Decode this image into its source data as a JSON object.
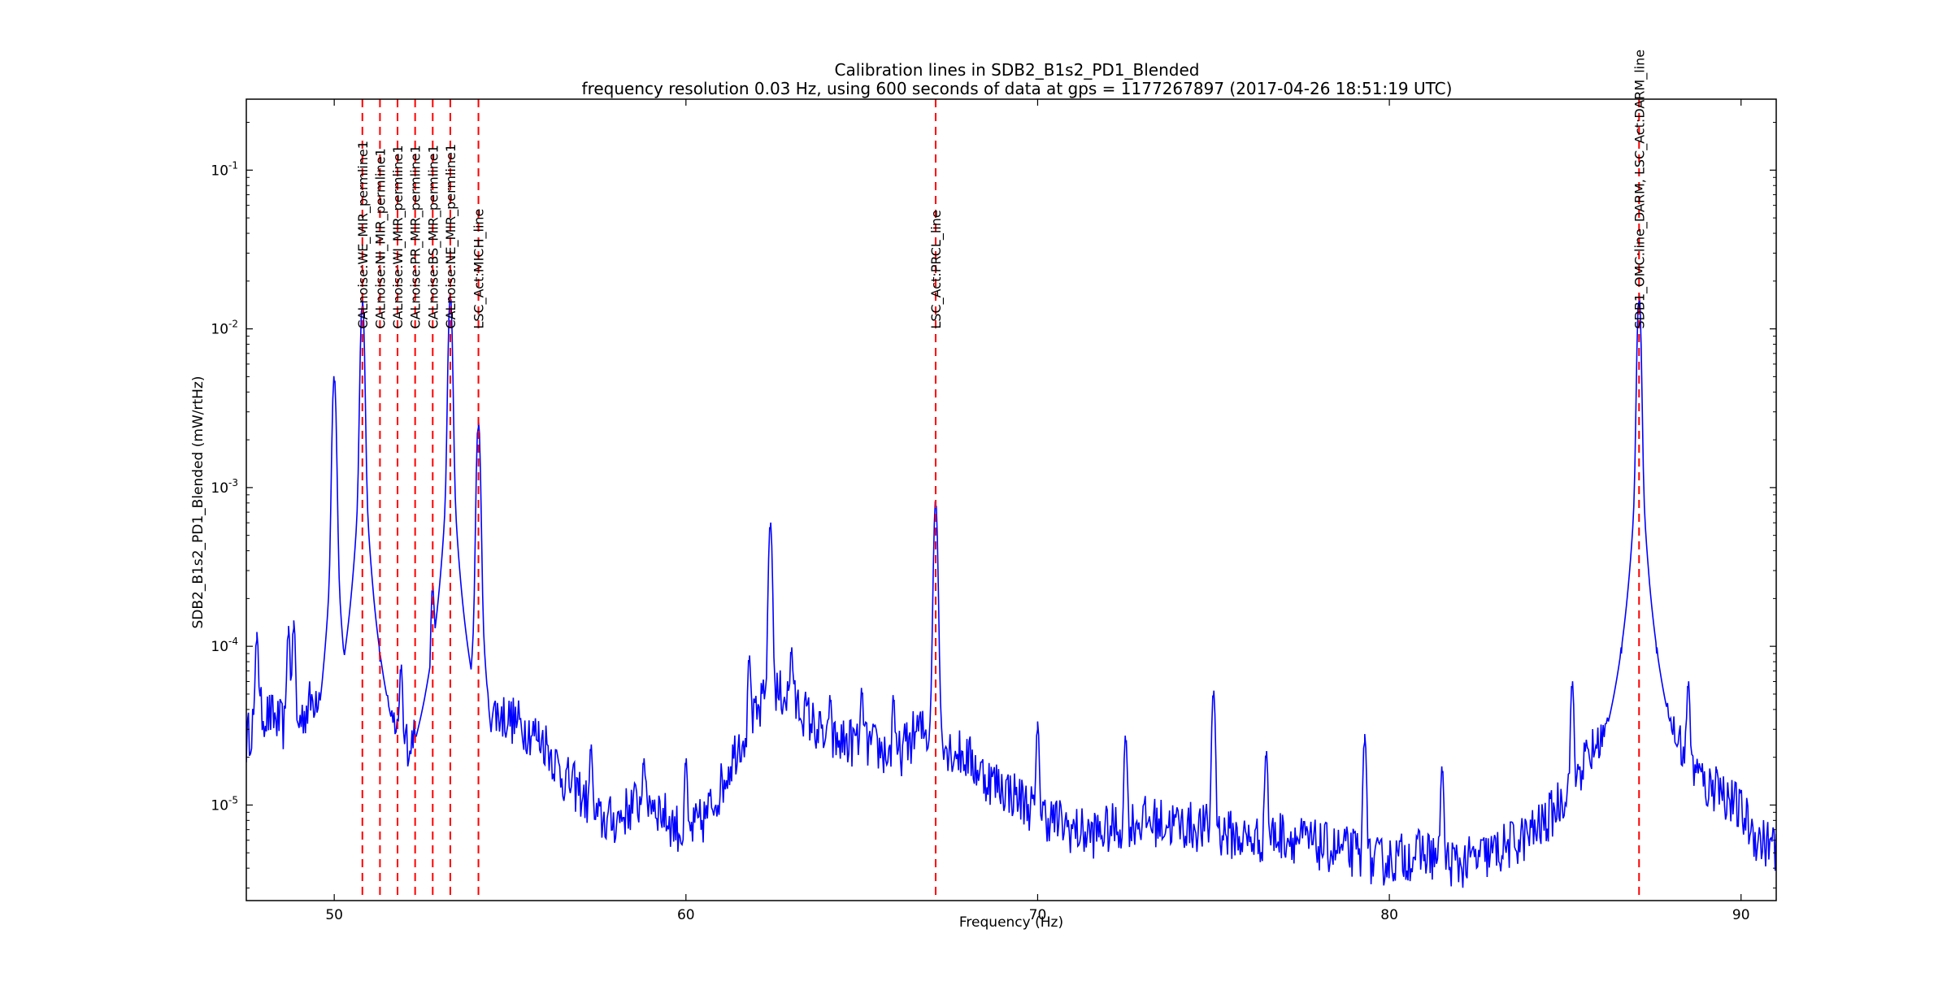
{
  "chart_data": {
    "type": "line",
    "title": "Calibration lines in SDB2_B1s2_PD1_Blended",
    "subtitle": "frequency resolution 0.03 Hz, using 600 seconds of data at gps = 1177267897 (2017-04-26 18:51:19 UTC)",
    "xlabel": "Frequency (Hz)",
    "ylabel": "SDB2_B1s2_PD1_Blended (mW/rtHz)",
    "xlim": [
      47.5,
      91
    ],
    "ylim": [
      2.5e-06,
      0.28
    ],
    "yscale": "log",
    "grid": false,
    "line_color": "#0000ff",
    "marker_color": "#ff0000",
    "x_ticks": [
      50,
      60,
      70,
      80,
      90
    ],
    "x_tick_labels": [
      "50",
      "60",
      "70",
      "80",
      "90"
    ],
    "y_ticks": [
      1e-05,
      0.0001,
      0.001,
      0.01,
      0.1
    ],
    "y_tick_labels": [
      {
        "base": "10",
        "exp": "-5"
      },
      {
        "base": "10",
        "exp": "-4"
      },
      {
        "base": "10",
        "exp": "-3"
      },
      {
        "base": "10",
        "exp": "-2"
      },
      {
        "base": "10",
        "exp": "-1"
      }
    ],
    "calibration_lines": [
      {
        "name": "CALnoise:WE_MIR_permline1",
        "freq": 50.8
      },
      {
        "name": "CALnoise:NI_MIR_permline1",
        "freq": 51.3
      },
      {
        "name": "CALnoise:WI_MIR_permline1",
        "freq": 51.8
      },
      {
        "name": "CALnoise:PR_MIR_permline1",
        "freq": 52.3
      },
      {
        "name": "CALnoise:BS_MIR_permline1",
        "freq": 52.8
      },
      {
        "name": "CALnoise:NE_MIR_permline1",
        "freq": 53.3
      },
      {
        "name": "LSC_Act:MICH_line",
        "freq": 54.1
      },
      {
        "name": "LSC_Act:PRCL_line",
        "freq": 67.1
      },
      {
        "name": "SDB1_OMC:line_DARM, LSC_Act:DARM_line",
        "freq": 87.1
      }
    ],
    "series": [
      {
        "baseline": [
          [
            47.5,
            2.5e-05
          ],
          [
            47.8,
            4e-05
          ],
          [
            48.3,
            3.5e-05
          ],
          [
            48.8,
            2.8e-05
          ],
          [
            49.2,
            4e-05
          ],
          [
            49.7,
            6e-05
          ],
          [
            50.3,
            5.5e-05
          ],
          [
            50.8,
            5e-05
          ],
          [
            51.3,
            5e-05
          ],
          [
            51.8,
            2.5e-05
          ],
          [
            52.3,
            2.5e-05
          ],
          [
            52.8,
            3e-05
          ],
          [
            53.3,
            4e-05
          ],
          [
            53.8,
            4.5e-05
          ],
          [
            54.3,
            4e-05
          ],
          [
            55,
            3.5e-05
          ],
          [
            55.5,
            3e-05
          ],
          [
            56,
            2.5e-05
          ],
          [
            56.5,
            1.5e-05
          ],
          [
            57,
            1.2e-05
          ],
          [
            57.5,
            8e-06
          ],
          [
            58,
            8e-06
          ],
          [
            58.5,
            1e-05
          ],
          [
            59,
            1.1e-05
          ],
          [
            59.5,
            8e-06
          ],
          [
            60,
            6.5e-06
          ],
          [
            60.5,
            8e-06
          ],
          [
            61,
            1.3e-05
          ],
          [
            61.5,
            2.5e-05
          ],
          [
            62,
            3.5e-05
          ],
          [
            62.3,
            5e-05
          ],
          [
            62.8,
            5e-05
          ],
          [
            63.3,
            4e-05
          ],
          [
            63.5,
            3.5e-05
          ],
          [
            64,
            2.5e-05
          ],
          [
            65,
            2.5e-05
          ],
          [
            66,
            2e-05
          ],
          [
            66.6,
            3e-05
          ],
          [
            67.6,
            2.2e-05
          ],
          [
            68,
            2e-05
          ],
          [
            68.5,
            1.5e-05
          ],
          [
            69,
            1.3e-05
          ],
          [
            69.5,
            1.1e-05
          ],
          [
            70,
            9e-06
          ],
          [
            70.5,
            8e-06
          ],
          [
            71,
            7e-06
          ],
          [
            71.5,
            6.5e-06
          ],
          [
            72,
            7e-06
          ],
          [
            73,
            8e-06
          ],
          [
            74,
            7.5e-06
          ],
          [
            75,
            7e-06
          ],
          [
            76,
            6e-06
          ],
          [
            77,
            6.5e-06
          ],
          [
            78,
            5.5e-06
          ],
          [
            79,
            5e-06
          ],
          [
            79.5,
            4.3e-06
          ],
          [
            80,
            4.5e-06
          ],
          [
            81,
            5e-06
          ],
          [
            82,
            4.2e-06
          ],
          [
            83,
            5e-06
          ],
          [
            84,
            6.5e-06
          ],
          [
            84.5,
            8e-06
          ],
          [
            85,
            1.2e-05
          ],
          [
            85.5,
            1.8e-05
          ],
          [
            86,
            2.5e-05
          ],
          [
            86.5,
            3.5e-05
          ],
          [
            86.8,
            4.5e-05
          ],
          [
            87.5,
            4.5e-05
          ],
          [
            88,
            3e-05
          ],
          [
            88.5,
            2e-05
          ],
          [
            89,
            1.3e-05
          ],
          [
            89.5,
            1.2e-05
          ],
          [
            90,
            9e-06
          ],
          [
            90.5,
            6e-06
          ],
          [
            91,
            5.5e-06
          ]
        ],
        "peaks": [
          [
            47.8,
            0.00011
          ],
          [
            48.7,
            0.00012
          ],
          [
            48.85,
            0.00013
          ],
          [
            50.0,
            0.0046
          ],
          [
            50.8,
            0.014
          ],
          [
            51.3,
            8e-05
          ],
          [
            51.9,
            7e-05
          ],
          [
            52.8,
            0.00022
          ],
          [
            53.3,
            0.015
          ],
          [
            54.1,
            0.0024
          ],
          [
            55.8,
            2.5e-05
          ],
          [
            57.3,
            2.2e-05
          ],
          [
            58.8,
            1.8e-05
          ],
          [
            60.0,
            1.8e-05
          ],
          [
            61.8,
            8e-05
          ],
          [
            62.4,
            0.00055
          ],
          [
            63.0,
            9e-05
          ],
          [
            64.1,
            4.5e-05
          ],
          [
            65.0,
            5e-05
          ],
          [
            65.9,
            4.5e-05
          ],
          [
            67.1,
            0.00075
          ],
          [
            70.0,
            3e-05
          ],
          [
            72.5,
            2.5e-05
          ],
          [
            75.0,
            4.8e-05
          ],
          [
            76.5,
            2e-05
          ],
          [
            79.3,
            2.5e-05
          ],
          [
            81.5,
            1.6e-05
          ],
          [
            85.2,
            5.5e-05
          ],
          [
            86.6,
            9e-05
          ],
          [
            87.1,
            0.015
          ],
          [
            87.6,
            9e-05
          ],
          [
            88.5,
            5.5e-05
          ],
          [
            89.3,
            1.6e-05
          ]
        ]
      }
    ]
  }
}
